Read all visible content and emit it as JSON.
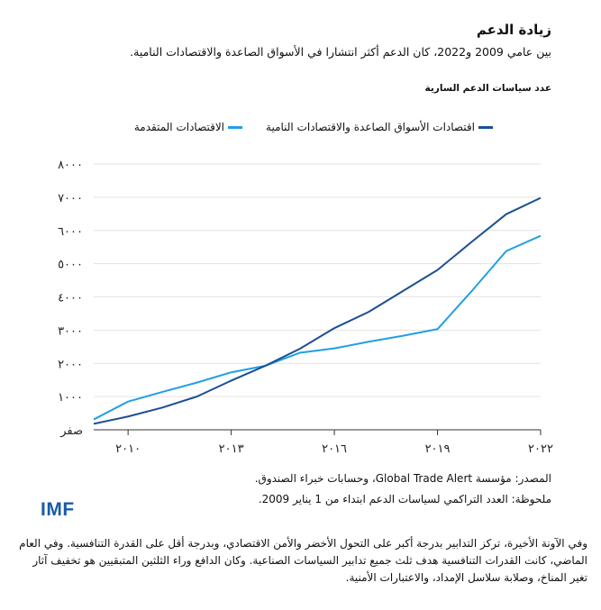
{
  "header": {
    "title": "زيادة الدعم",
    "subtitle": "بين عامي 2009 و2022، كان الدعم أكثر انتشارا في الأسواق الصاعدة والاقتصادات النامية."
  },
  "chart_data": {
    "type": "line",
    "ylabel": "عدد سياسات الدعم السارية",
    "x": [
      2009,
      2010,
      2011,
      2012,
      2013,
      2014,
      2015,
      2016,
      2017,
      2018,
      2019,
      2020,
      2021,
      2022
    ],
    "xlim": [
      2009,
      2022
    ],
    "ylim": [
      0,
      8000
    ],
    "grid": true,
    "legend_placement": "top",
    "x_ticks": [
      2010,
      2013,
      2016,
      2019,
      2022
    ],
    "x_tick_labels": [
      "٢٠١٠",
      "٢٠١٣",
      "٢٠١٦",
      "٢٠١٩",
      "٢٠٢٢"
    ],
    "y_ticks": [
      0,
      1000,
      2000,
      3000,
      4000,
      5000,
      6000,
      7000,
      8000
    ],
    "y_tick_labels": [
      "صفر",
      "١٠٠٠",
      "٢٠٠٠",
      "٣٠٠٠",
      "٤٠٠٠",
      "٥٠٠٠",
      "٦٠٠٠",
      "٧٠٠٠",
      "٨٠٠٠"
    ],
    "series": [
      {
        "name": "اقتصادات الأسواق الصاعدة والاقتصادات النامية",
        "color": "#1b4f93",
        "values": [
          180,
          400,
          670,
          1000,
          1480,
          1930,
          2440,
          3060,
          3550,
          4180,
          4810,
          5660,
          6490,
          6980
        ]
      },
      {
        "name": "الاقتصادات المتقدمة",
        "color": "#1fa0e3",
        "values": [
          310,
          850,
          1140,
          1420,
          1730,
          1930,
          2320,
          2450,
          2650,
          2830,
          3030,
          4180,
          5380,
          5840
        ]
      }
    ]
  },
  "footer": {
    "source": "المصدر: مؤسسة Global Trade Alert، وحسابات خبراء الصندوق.",
    "note": "ملحوظة: العدد التراكمي لسياسات الدعم ابتداء من 1 يناير 2009.",
    "logo": "IMF",
    "paragraph": "وفي الآونة الأخيرة، تركز التدابير بدرجة أكبر على التحول الأخضر والأمن الاقتصادي، وبدرجة أقل على القدرة التنافسية. وفي العام الماضي، كانت القدرات التنافسية هدف ثلث جميع تدابير السياسات الصناعية. وكان الدافع وراء الثلثين المتبقيين هو تخفيف آثار تغير المناخ، وصلابة سلاسل الإمداد، والاعتبارات الأمنية."
  },
  "colors": {
    "grid": "#e3e3e3",
    "axis": "#333333",
    "logo": "#1a5aa8"
  }
}
